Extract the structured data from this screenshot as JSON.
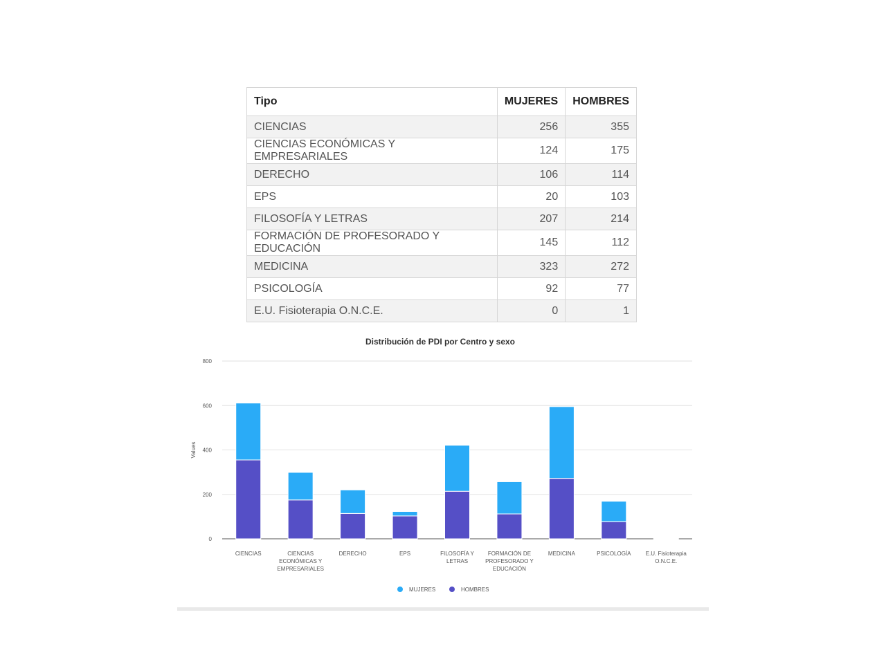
{
  "table": {
    "headers": [
      "Tipo",
      "MUJERES",
      "HOMBRES"
    ],
    "rows": [
      {
        "tipo": "CIENCIAS",
        "mujeres": "256",
        "hombres": "355"
      },
      {
        "tipo": "CIENCIAS ECONÓMICAS Y EMPRESARIALES",
        "mujeres": "124",
        "hombres": "175"
      },
      {
        "tipo": "DERECHO",
        "mujeres": "106",
        "hombres": "114"
      },
      {
        "tipo": "EPS",
        "mujeres": "20",
        "hombres": "103"
      },
      {
        "tipo": "FILOSOFÍA Y LETRAS",
        "mujeres": "207",
        "hombres": "214"
      },
      {
        "tipo": "FORMACIÓN DE PROFESORADO Y EDUCACIÓN",
        "mujeres": "145",
        "hombres": "112"
      },
      {
        "tipo": "MEDICINA",
        "mujeres": "323",
        "hombres": "272"
      },
      {
        "tipo": "PSICOLOGÍA",
        "mujeres": "92",
        "hombres": "77"
      },
      {
        "tipo": "E.U. Fisioterapia O.N.C.E.",
        "mujeres": "0",
        "hombres": "1"
      }
    ]
  },
  "chart_data": {
    "type": "bar",
    "stacked": true,
    "title": "Distribución de PDI por Centro y sexo",
    "xlabel": "",
    "ylabel": "Values",
    "ylim": [
      0,
      800
    ],
    "yticks": [
      0,
      200,
      400,
      600,
      800
    ],
    "grid": true,
    "legend_position": "bottom",
    "categories": [
      [
        "CIENCIAS"
      ],
      [
        "CIENCIAS",
        "ECONÓMICAS Y",
        "EMPRESARIALES"
      ],
      [
        "DERECHO"
      ],
      [
        "EPS"
      ],
      [
        "FILOSOFÍA Y",
        "LETRAS"
      ],
      [
        "FORMACIÓN DE",
        "PROFESORADO Y",
        "EDUCACIÓN"
      ],
      [
        "MEDICINA"
      ],
      [
        "PSICOLOGÍA"
      ],
      [
        "E.U. Fisioterapia",
        "O.N.C.E."
      ]
    ],
    "series": [
      {
        "name": "HOMBRES",
        "color": "#554fc6",
        "values": [
          355,
          175,
          114,
          103,
          214,
          112,
          272,
          77,
          1
        ]
      },
      {
        "name": "MUJERES",
        "color": "#2aabf7",
        "values": [
          256,
          124,
          106,
          20,
          207,
          145,
          323,
          92,
          0
        ]
      }
    ],
    "legend": [
      {
        "name": "MUJERES",
        "color": "#2aabf7"
      },
      {
        "name": "HOMBRES",
        "color": "#554fc6"
      }
    ]
  }
}
